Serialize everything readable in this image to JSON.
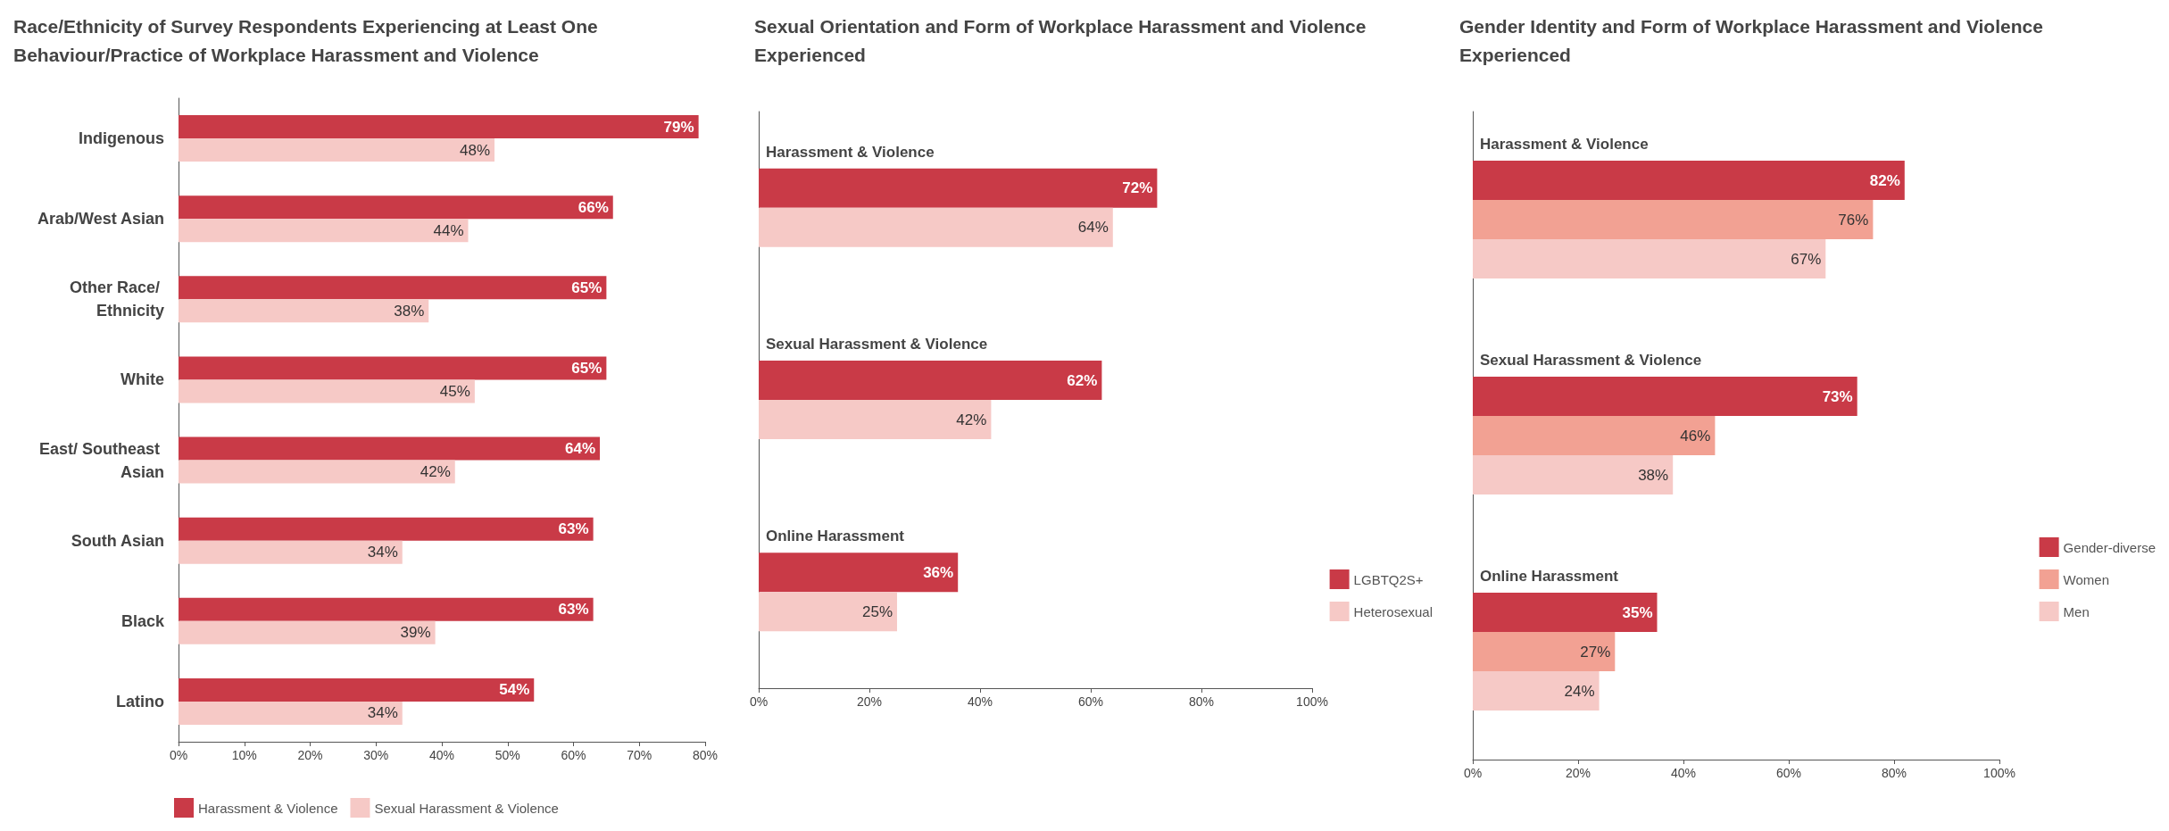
{
  "chart_data": [
    {
      "type": "bar",
      "orientation": "horizontal",
      "title": "Race/Ethnicity of Survey Respondents Experiencing at Least One Behaviour/Practice of Workplace Harassment and Violence",
      "categories": [
        "Indigenous",
        "Arab/West Asian",
        "Other Race/ Ethnicity",
        "White",
        "East/ Southeast Asian",
        "South Asian",
        "Black",
        "Latino"
      ],
      "series": [
        {
          "name": "Harassment & Violence",
          "color": "#c93a47",
          "values": [
            79,
            66,
            65,
            65,
            64,
            63,
            63,
            54
          ],
          "value_labels": [
            "79%",
            "66%",
            "65%",
            "65%",
            "64%",
            "63%",
            "63%",
            "54%"
          ]
        },
        {
          "name": "Sexual Harassment & Violence",
          "color": "#f6c9c6",
          "values": [
            48,
            44,
            38,
            45,
            42,
            34,
            39,
            34
          ],
          "value_labels": [
            "48%",
            "44%",
            "38%",
            "45%",
            "42%",
            "34%",
            "39%",
            "34%"
          ]
        }
      ],
      "xlim": [
        0,
        80
      ],
      "xticks": [
        {
          "value": 0,
          "label": "0%"
        },
        {
          "value": 10,
          "label": "10%"
        },
        {
          "value": 20,
          "label": "20%"
        },
        {
          "value": 30,
          "label": "30%"
        },
        {
          "value": 40,
          "label": "40%"
        },
        {
          "value": 50,
          "label": "50%"
        },
        {
          "value": 60,
          "label": "60%"
        },
        {
          "value": 70,
          "label": "70%"
        },
        {
          "value": 80,
          "label": "80%"
        }
      ],
      "legend": "bottom",
      "grid": false
    },
    {
      "type": "bar",
      "orientation": "horizontal",
      "title": "Sexual Orientation and Form of Workplace Harassment and Violence Experienced",
      "categories": [
        "Harassment & Violence",
        "Sexual Harassment & Violence",
        "Online Harassment"
      ],
      "series": [
        {
          "name": "LGBTQ2S+",
          "color": "#c93a47",
          "values": [
            72,
            62,
            36
          ],
          "value_labels": [
            "72%",
            "62%",
            "36%"
          ]
        },
        {
          "name": "Heterosexual",
          "color": "#f6c9c6",
          "values": [
            64,
            42,
            25
          ],
          "value_labels": [
            "64%",
            "42%",
            "25%"
          ]
        }
      ],
      "xlim": [
        0,
        100
      ],
      "xticks": [
        {
          "value": 0,
          "label": "0%"
        },
        {
          "value": 20,
          "label": "20%"
        },
        {
          "value": 40,
          "label": "40%"
        },
        {
          "value": 60,
          "label": "60%"
        },
        {
          "value": 80,
          "label": "80%"
        },
        {
          "value": 100,
          "label": "100%"
        }
      ],
      "legend": "right",
      "grid": false
    },
    {
      "type": "bar",
      "orientation": "horizontal",
      "title": "Gender Identity and Form of Workplace Harassment and Violence Experienced",
      "categories": [
        "Harassment & Violence",
        "Sexual Harassment & Violence",
        "Online Harassment"
      ],
      "series": [
        {
          "name": "Gender-diverse",
          "color": "#c93a47",
          "values": [
            82,
            73,
            35
          ],
          "value_labels": [
            "82%",
            "73%",
            "35%"
          ]
        },
        {
          "name": "Women",
          "color": "#f2a193",
          "values": [
            76,
            46,
            27
          ],
          "value_labels": [
            "76%",
            "46%",
            "27%"
          ]
        },
        {
          "name": "Men",
          "color": "#f6c9c6",
          "values": [
            67,
            38,
            24
          ],
          "value_labels": [
            "67%",
            "38%",
            "24%"
          ]
        }
      ],
      "xlim": [
        0,
        100
      ],
      "xticks": [
        {
          "value": 0,
          "label": "0%"
        },
        {
          "value": 20,
          "label": "20%"
        },
        {
          "value": 40,
          "label": "40%"
        },
        {
          "value": 60,
          "label": "60%"
        },
        {
          "value": 80,
          "label": "80%"
        },
        {
          "value": 100,
          "label": "100%"
        }
      ],
      "legend": "right",
      "grid": false
    }
  ]
}
